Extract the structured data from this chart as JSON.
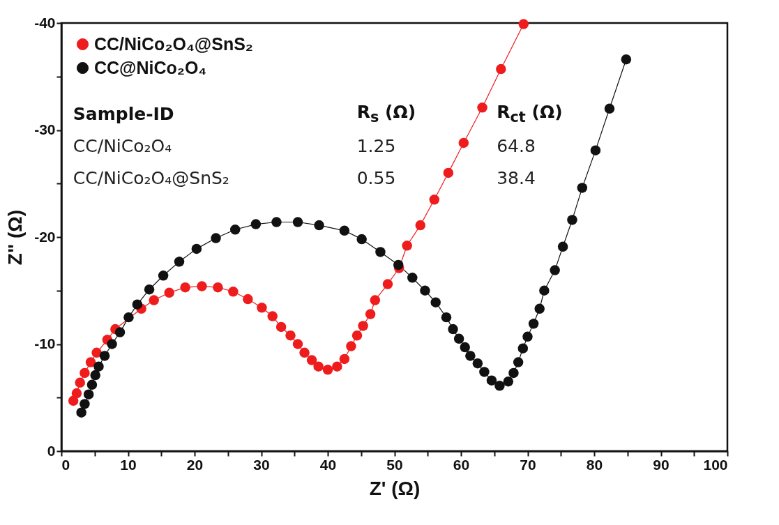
{
  "chart_data": {
    "type": "line",
    "xlabel": "Z' (Ω)",
    "ylabel": "Z\" (Ω)",
    "xlim": [
      0,
      100
    ],
    "xticks": [
      0,
      {
        "value": 5,
        "label": null
      },
      10,
      {
        "value": 15,
        "label": null
      },
      20,
      {
        "value": 25,
        "label": null
      },
      30,
      {
        "value": 35,
        "label": null
      },
      40,
      {
        "value": 45,
        "label": null
      },
      50,
      {
        "value": 55,
        "label": null
      },
      60,
      {
        "value": 65,
        "label": null
      },
      70,
      {
        "value": 75,
        "label": null
      },
      80,
      {
        "value": 85,
        "label": null
      },
      90,
      {
        "value": 95,
        "label": null
      },
      100
    ],
    "ylim": [
      0,
      -40
    ],
    "yticks": [
      0,
      {
        "value": -5,
        "label": null
      },
      -10,
      {
        "value": -15,
        "label": null
      },
      -20,
      {
        "value": -25,
        "label": null
      },
      -30,
      {
        "value": -35,
        "label": null
      },
      -40
    ],
    "grid": false,
    "legend": "top left",
    "marker": "circle",
    "line_style": "solid",
    "series": [
      {
        "name": "CC/NiCo₂O₄@SnS₂",
        "color": "#ee1c1c",
        "x": [
          1.8,
          2.3,
          2.8,
          3.5,
          4.4,
          5.3,
          6.9,
          8.1,
          12.0,
          13.9,
          16.2,
          18.6,
          21.1,
          23.5,
          25.8,
          28.0,
          30.1,
          31.7,
          33.0,
          34.4,
          35.5,
          36.5,
          37.6,
          38.6,
          40.0,
          41.4,
          42.5,
          43.5,
          44.4,
          45.3,
          46.4,
          47.1,
          49.0,
          50.7,
          51.9,
          53.9,
          56.0,
          58.1,
          60.4,
          63.2,
          66.0,
          69.4
        ],
        "values": [
          -4.7,
          -5.4,
          -6.4,
          -7.3,
          -8.3,
          -9.2,
          -10.4,
          -11.4,
          -13.3,
          -14.1,
          -14.8,
          -15.3,
          -15.4,
          -15.3,
          -14.9,
          -14.2,
          -13.4,
          -12.6,
          -11.6,
          -10.8,
          -10.0,
          -9.2,
          -8.5,
          -7.9,
          -7.6,
          -7.9,
          -8.6,
          -9.8,
          -10.8,
          -11.7,
          -12.8,
          -14.1,
          -15.6,
          -17.1,
          -19.2,
          -21.1,
          -23.5,
          -26.0,
          -28.8,
          -32.1,
          -35.7,
          -39.9
        ]
      },
      {
        "name": "CC@NiCo₂O₄",
        "color": "#111111",
        "x": [
          3.0,
          3.5,
          4.1,
          4.6,
          5.1,
          5.6,
          6.5,
          7.6,
          8.8,
          10.1,
          11.4,
          13.2,
          15.3,
          17.7,
          20.3,
          23.2,
          26.1,
          29.2,
          32.3,
          35.5,
          38.7,
          42.5,
          45.1,
          47.9,
          50.6,
          52.7,
          54.6,
          56.2,
          57.8,
          58.8,
          59.7,
          60.6,
          61.4,
          62.5,
          63.5,
          64.6,
          65.8,
          67.1,
          67.9,
          68.6,
          69.3,
          70.0,
          70.9,
          71.8,
          72.5,
          74.1,
          75.3,
          76.7,
          78.2,
          80.2,
          82.3,
          84.8
        ],
        "values": [
          -3.6,
          -4.4,
          -5.3,
          -6.2,
          -7.1,
          -7.9,
          -8.9,
          -10.0,
          -11.1,
          -12.5,
          -13.7,
          -15.1,
          -16.4,
          -17.7,
          -18.9,
          -19.9,
          -20.7,
          -21.2,
          -21.4,
          -21.4,
          -21.1,
          -20.6,
          -19.8,
          -18.6,
          -17.4,
          -16.2,
          -15.0,
          -13.9,
          -12.5,
          -11.4,
          -10.5,
          -9.7,
          -8.9,
          -8.2,
          -7.4,
          -6.6,
          -6.1,
          -6.5,
          -7.3,
          -8.3,
          -9.6,
          -10.7,
          -11.9,
          -13.3,
          -15.0,
          -16.9,
          -19.1,
          -21.6,
          -24.6,
          -28.1,
          -32.0,
          -36.6
        ]
      }
    ],
    "annotations": [
      "Sample-ID",
      "R$_{s}$ (Ω)",
      "R$_{ct}$ (Ω)",
      "CC/NiCo₂O₄",
      "1.25",
      "64.8",
      "CC/NiCo₂O₄@SnS₂",
      "0.55",
      "38.4"
    ]
  }
}
